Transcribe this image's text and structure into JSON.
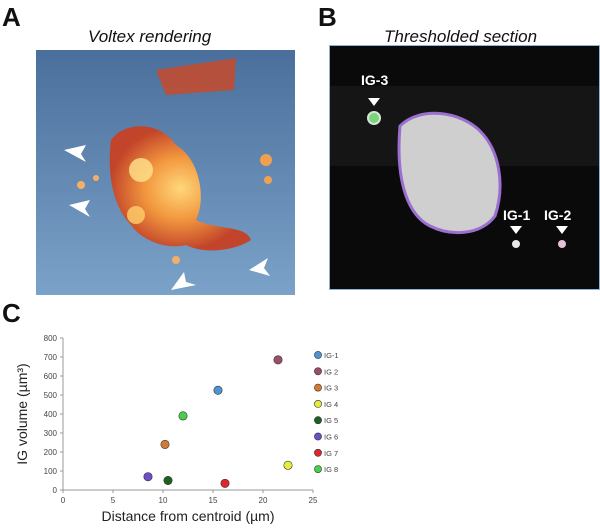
{
  "panel_a": {
    "letter": "A",
    "title": "Voltex rendering"
  },
  "panel_b": {
    "letter": "B",
    "title": "Thresholded section",
    "labels": [
      "IG-3",
      "IG-1",
      "IG-2"
    ]
  },
  "panel_c": {
    "letter": "C"
  },
  "chart_data": {
    "type": "scatter",
    "xlabel": "Distance from centroid (µm)",
    "ylabel": "IG volume (µm³)",
    "xlim": [
      0,
      25
    ],
    "ylim": [
      0,
      800
    ],
    "xticks": [
      0,
      5,
      10,
      15,
      20,
      25
    ],
    "yticks": [
      0,
      100,
      200,
      300,
      400,
      500,
      600,
      700,
      800
    ],
    "grid": false,
    "legend_position": "right",
    "series": [
      {
        "name": "IG-1",
        "x": 15.5,
        "y": 525,
        "color": "#4f93d1"
      },
      {
        "name": "IG 2",
        "x": 21.5,
        "y": 685,
        "color": "#9a4f63"
      },
      {
        "name": "IG 3",
        "x": 10.2,
        "y": 240,
        "color": "#d27a33"
      },
      {
        "name": "IG 4",
        "x": 22.5,
        "y": 130,
        "color": "#e7ec3c"
      },
      {
        "name": "IG 5",
        "x": 10.5,
        "y": 50,
        "color": "#1f5f1f"
      },
      {
        "name": "IG 6",
        "x": 8.5,
        "y": 70,
        "color": "#6a4fc9"
      },
      {
        "name": "IG 7",
        "x": 16.2,
        "y": 35,
        "color": "#e0262a"
      },
      {
        "name": "IG 8",
        "x": 12.0,
        "y": 390,
        "color": "#46d04a"
      }
    ]
  }
}
